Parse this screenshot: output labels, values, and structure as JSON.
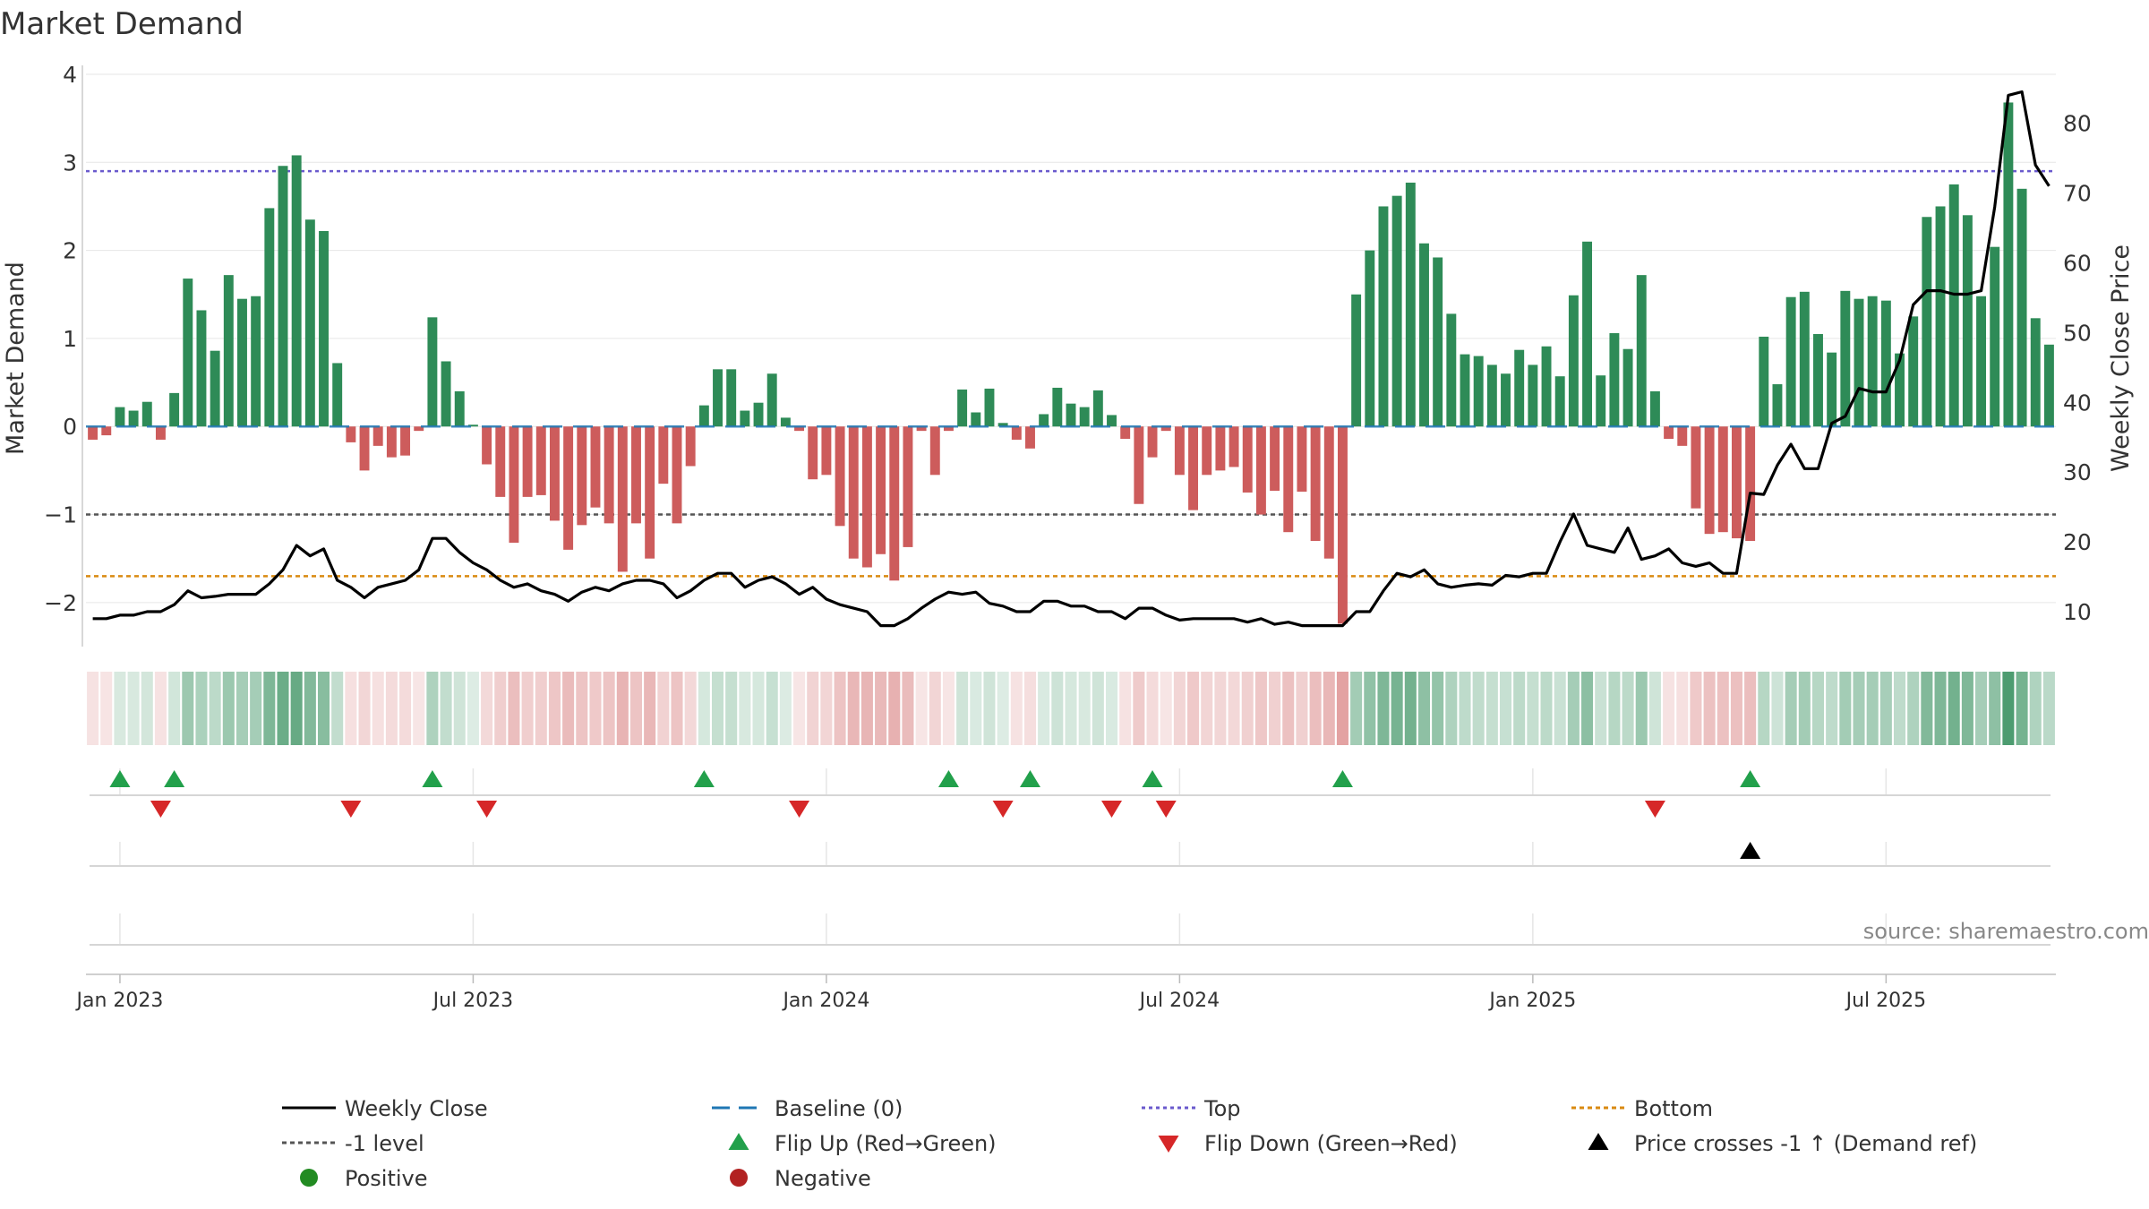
{
  "chart_data": {
    "type": "bar",
    "title": "Market Demand",
    "ylabel": "Market Demand",
    "y2label": "Weekly Close Price",
    "ylim": [
      -2.5,
      4.0
    ],
    "y2lim": [
      5,
      87
    ],
    "yticks": [
      -2,
      -1,
      0,
      1,
      2,
      3,
      4
    ],
    "y2ticks": [
      10,
      20,
      30,
      40,
      50,
      60,
      70,
      80
    ],
    "xtick_labels": [
      "Jan 2023",
      "Jul 2023",
      "Jan 2024",
      "Jul 2024",
      "Jan 2025",
      "Jul 2025"
    ],
    "xtick_week_index": [
      2,
      28,
      54,
      80,
      106,
      132
    ],
    "week_count": 145,
    "reference_lines": {
      "top": 2.9,
      "minus_one": -1.0,
      "bottom": -1.7,
      "baseline": 0
    },
    "demand": [
      -0.15,
      -0.1,
      0.22,
      0.18,
      0.28,
      -0.15,
      0.38,
      1.68,
      1.32,
      0.86,
      1.72,
      1.45,
      1.48,
      2.48,
      2.96,
      3.08,
      2.35,
      2.22,
      0.72,
      -0.18,
      -0.5,
      -0.22,
      -0.35,
      -0.33,
      -0.05,
      1.24,
      0.74,
      0.4,
      0.02,
      -0.43,
      -0.8,
      -1.32,
      -0.8,
      -0.78,
      -1.07,
      -1.4,
      -1.12,
      -0.92,
      -1.1,
      -1.65,
      -1.1,
      -1.5,
      -0.65,
      -1.1,
      -0.45,
      0.24,
      0.65,
      0.65,
      0.18,
      0.27,
      0.6,
      0.1,
      -0.05,
      -0.6,
      -0.55,
      -1.13,
      -1.5,
      -1.6,
      -1.45,
      -1.75,
      -1.37,
      -0.05,
      -0.55,
      -0.05,
      0.42,
      0.16,
      0.43,
      0.04,
      -0.15,
      -0.25,
      0.14,
      0.44,
      0.26,
      0.22,
      0.41,
      0.13,
      -0.14,
      -0.88,
      -0.35,
      -0.05,
      -0.55,
      -0.95,
      -0.55,
      -0.5,
      -0.46,
      -0.75,
      -1.0,
      -0.73,
      -1.2,
      -0.74,
      -1.3,
      -1.5,
      -2.24,
      1.5,
      2.0,
      2.5,
      2.62,
      2.77,
      2.08,
      1.92,
      1.28,
      0.82,
      0.8,
      0.7,
      0.6,
      0.87,
      0.7,
      0.91,
      0.57,
      1.49,
      2.1,
      0.58,
      1.06,
      0.88,
      1.72,
      0.4,
      -0.14,
      -0.22,
      -0.93,
      -1.22,
      -1.2,
      -1.27,
      -1.3,
      1.02,
      0.48,
      1.47,
      1.53,
      1.05,
      0.84,
      1.54,
      1.45,
      1.48,
      1.43,
      0.83,
      1.25,
      2.38,
      2.5,
      2.75,
      2.4,
      1.48,
      2.04,
      3.68,
      2.7,
      1.23,
      0.93
    ],
    "weekly_close": [
      9,
      9,
      9.5,
      9.5,
      10,
      10,
      11,
      13,
      12,
      12.2,
      12.5,
      12.5,
      12.5,
      14,
      16,
      19.5,
      18,
      19,
      14.5,
      13.5,
      12,
      13.5,
      14,
      14.5,
      16,
      20.5,
      20.5,
      18.5,
      17,
      16,
      14.5,
      13.5,
      14,
      13,
      12.5,
      11.5,
      12.8,
      13.5,
      13,
      14,
      14.5,
      14.5,
      14,
      12,
      13,
      14.5,
      15.5,
      15.5,
      13.5,
      14.5,
      15,
      14,
      12.5,
      13.5,
      11.8,
      11,
      10.5,
      10,
      8,
      8,
      9,
      10.5,
      11.8,
      12.8,
      12.5,
      12.8,
      11.2,
      10.8,
      10,
      10,
      11.5,
      11.5,
      10.8,
      10.8,
      10,
      10,
      9,
      10.5,
      10.5,
      9.5,
      8.8,
      9,
      9,
      9,
      9,
      8.5,
      9,
      8.2,
      8.5,
      8,
      8,
      8,
      8,
      10,
      10,
      13,
      15.5,
      15,
      16,
      14,
      13.5,
      13.8,
      14,
      13.8,
      15.2,
      15,
      15.5,
      15.5,
      20,
      24,
      19.5,
      19,
      18.5,
      22,
      17.5,
      18,
      19,
      17,
      16.5,
      17,
      15.5,
      15.5,
      27,
      26.8,
      31,
      34,
      30.5,
      30.5,
      37,
      38,
      42,
      41.5,
      41.5,
      46,
      54,
      56,
      56,
      55.5,
      55.5,
      56,
      68,
      84,
      84.5,
      74,
      71
    ],
    "flip_up_indices": [
      2,
      6,
      25,
      45,
      63,
      69,
      78,
      92,
      122
    ],
    "flip_down_indices": [
      5,
      19,
      29,
      52,
      67,
      75,
      79,
      115
    ],
    "price_cross_indices": [
      122
    ],
    "legend": [
      {
        "key": "weekly_close",
        "label": "Weekly Close"
      },
      {
        "key": "baseline",
        "label": "Baseline (0)"
      },
      {
        "key": "top",
        "label": "Top"
      },
      {
        "key": "bottom",
        "label": "Bottom"
      },
      {
        "key": "minus_one",
        "label": "-1 level"
      },
      {
        "key": "flip_up",
        "label": "Flip Up (Red→Green)"
      },
      {
        "key": "flip_down",
        "label": "Flip Down (Green→Red)"
      },
      {
        "key": "price_cross",
        "label": "Price crosses -1 ↑ (Demand ref)"
      },
      {
        "key": "positive",
        "label": "Positive"
      },
      {
        "key": "negative",
        "label": "Negative"
      }
    ],
    "legend_position": "bottom",
    "source_note": "source: sharemaestro.com"
  },
  "colors": {
    "positive_bar": "#2e8b57",
    "negative_bar": "#cd5c5c",
    "price_line": "#000000",
    "baseline": "#1f77b4",
    "top": "#6a5acd",
    "minus_one": "#555555",
    "bottom": "#d98a10",
    "flip_up": "#22a04b",
    "flip_down": "#d62728",
    "price_cross": "#000000",
    "positive_dot": "#228b22",
    "negative_dot": "#b22222",
    "text": "#333333",
    "grid": "#e6e6e6",
    "axis": "#cccccc",
    "source": "#888888"
  }
}
